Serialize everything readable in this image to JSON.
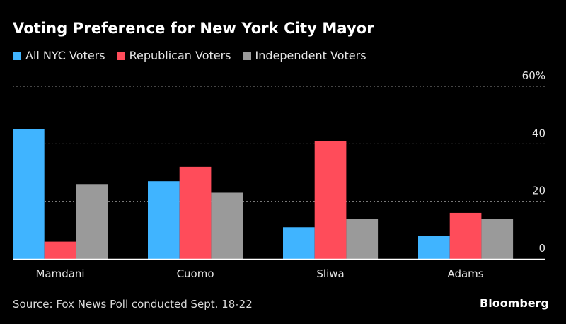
{
  "chart_data": {
    "type": "bar",
    "title": "Voting Preference for New York City Mayor",
    "categories": [
      "Mamdani",
      "Cuomo",
      "Sliwa",
      "Adams"
    ],
    "series": [
      {
        "name": "All NYC Voters",
        "color": "#40b4ff",
        "values": [
          45,
          27,
          11,
          8
        ]
      },
      {
        "name": "Republican Voters",
        "color": "#ff4c5a",
        "values": [
          6,
          32,
          41,
          16
        ]
      },
      {
        "name": "Independent Voters",
        "color": "#9a9a9a",
        "values": [
          26,
          23,
          14,
          14
        ]
      }
    ],
    "ylim": [
      0,
      60
    ],
    "yticks": [
      {
        "value": 60,
        "label": "60%"
      },
      {
        "value": 40,
        "label": "40"
      },
      {
        "value": 20,
        "label": "20"
      },
      {
        "value": 0,
        "label": "0"
      }
    ],
    "grid": true,
    "legend_position": "top-left",
    "xlabel": "",
    "ylabel": ""
  },
  "footer": {
    "source": "Source: Fox News Poll conducted Sept. 18-22",
    "brand": "Bloomberg"
  }
}
